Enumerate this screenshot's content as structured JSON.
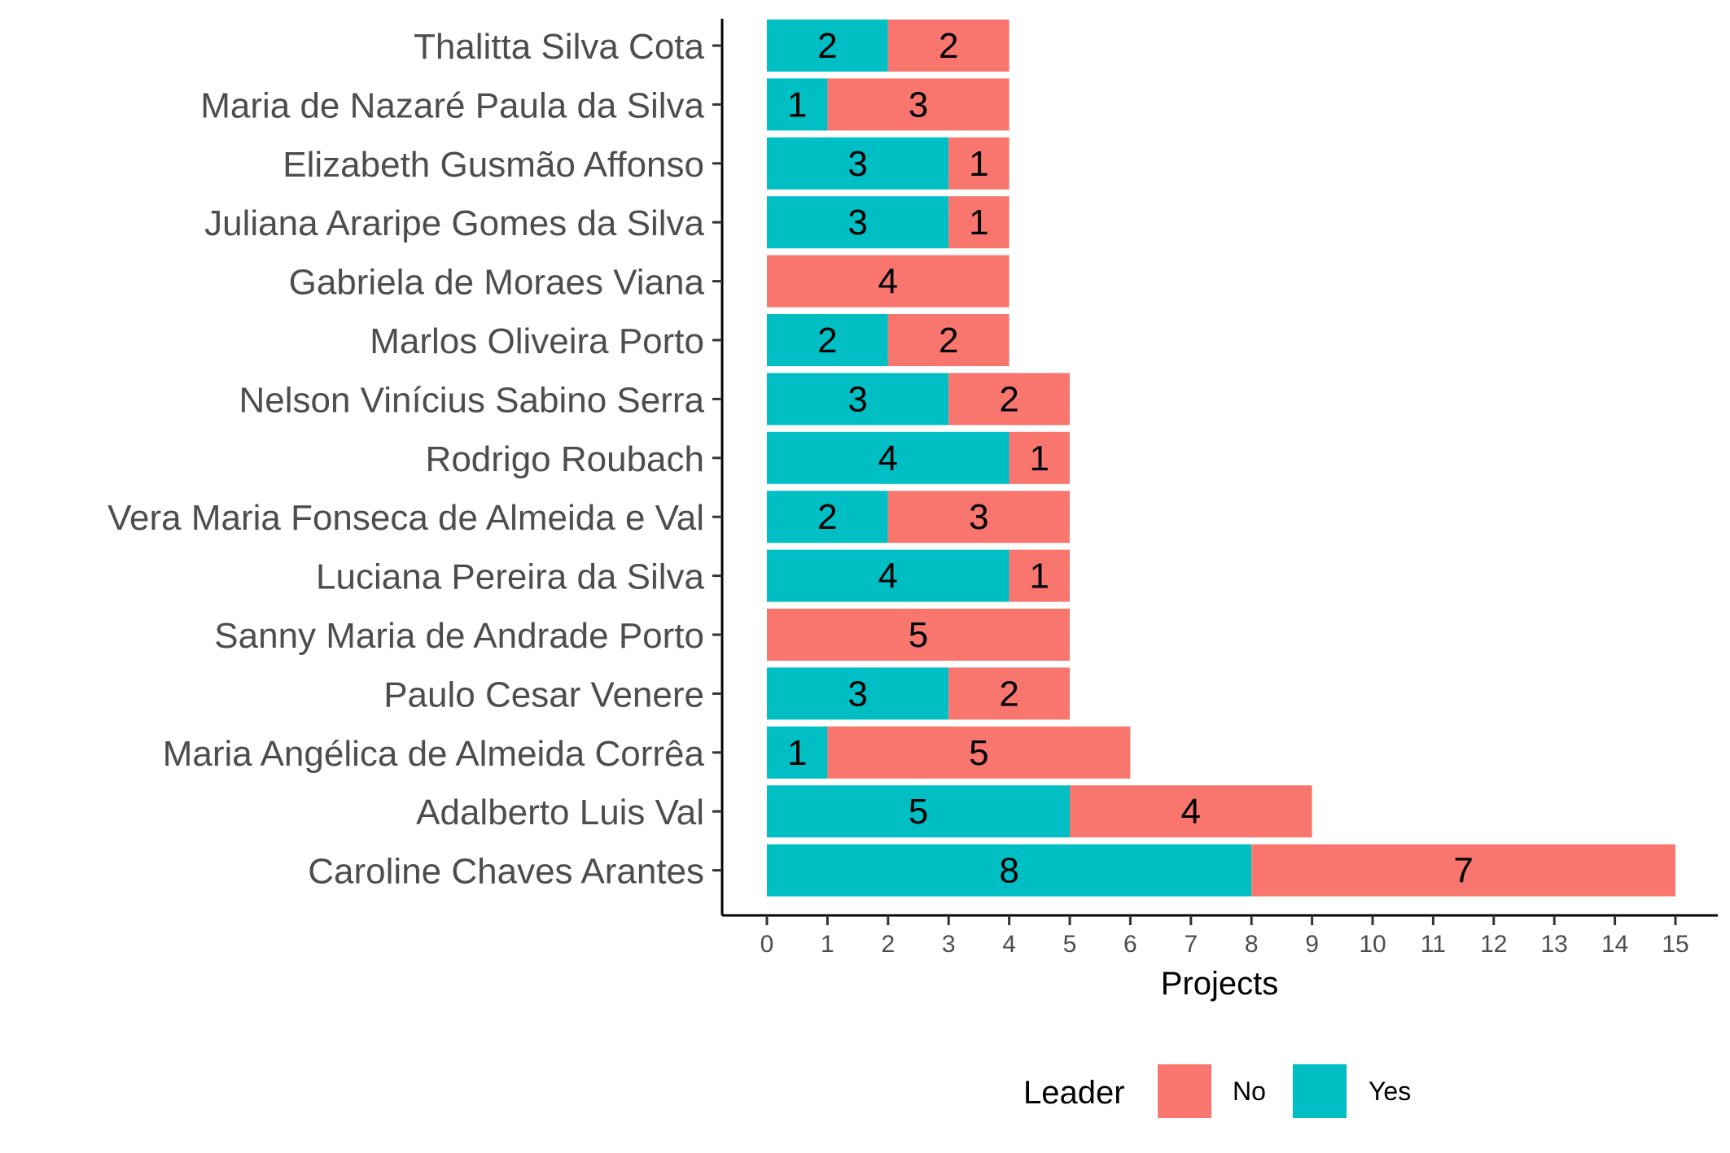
{
  "chart_data": {
    "type": "bar",
    "orientation": "horizontal",
    "stacked": true,
    "categories": [
      "Thalitta Silva Cota",
      "Maria de Nazaré Paula da Silva",
      "Elizabeth Gusmão Affonso",
      "Juliana Araripe Gomes da Silva",
      "Gabriela de Moraes Viana",
      "Marlos Oliveira Porto",
      "Nelson Vinícius Sabino Serra",
      "Rodrigo Roubach",
      "Vera Maria Fonseca de Almeida e Val",
      "Luciana Pereira da Silva",
      "Sanny Maria de Andrade Porto",
      "Paulo Cesar Venere",
      "Maria Angélica de Almeida Corrêa",
      "Adalberto Luis Val",
      "Caroline Chaves Arantes"
    ],
    "series": [
      {
        "name": "Yes",
        "color": "#00bfc4",
        "values": [
          2,
          1,
          3,
          3,
          0,
          2,
          3,
          4,
          2,
          4,
          0,
          3,
          1,
          5,
          8
        ]
      },
      {
        "name": "No",
        "color": "#f8766d",
        "values": [
          2,
          3,
          1,
          1,
          4,
          2,
          2,
          1,
          3,
          1,
          5,
          2,
          5,
          4,
          7
        ]
      }
    ],
    "xlabel": "Projects",
    "ylabel": "",
    "xlim": [
      0,
      15
    ],
    "x_ticks": [
      0,
      1,
      2,
      3,
      4,
      5,
      6,
      7,
      8,
      9,
      10,
      11,
      12,
      13,
      14,
      15
    ],
    "grid": false,
    "legend": {
      "title": "Leader",
      "position": "bottom",
      "entries": [
        {
          "label": "No",
          "color": "#f8766d"
        },
        {
          "label": "Yes",
          "color": "#00bfc4"
        }
      ]
    }
  }
}
